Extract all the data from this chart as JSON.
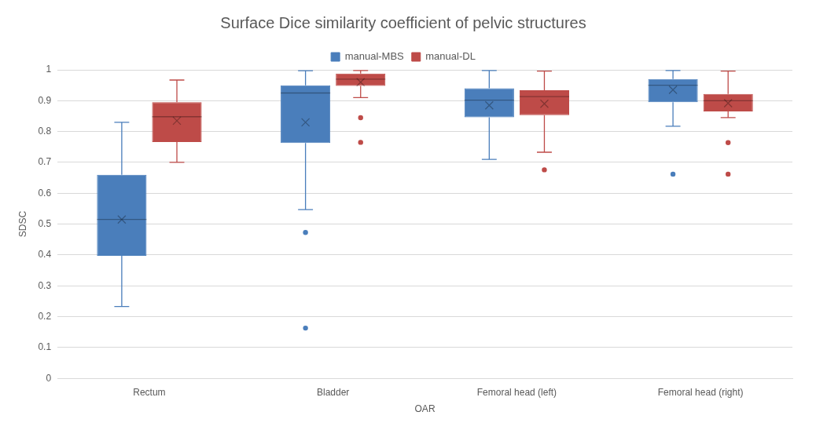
{
  "chart_data": {
    "type": "box",
    "title": "Surface Dice similarity coefficient of pelvic structures",
    "xlabel": "OAR",
    "ylabel": "SDSC",
    "categories": [
      "Rectum",
      "Bladder",
      "Femoral head (left)",
      "Femoral head (right)"
    ],
    "ylim": [
      0,
      1
    ],
    "yticks": [
      0,
      0.1,
      0.2,
      0.3,
      0.4,
      0.5,
      0.6,
      0.7,
      0.8,
      0.9,
      1
    ],
    "grid": "y",
    "legend": "top",
    "series": [
      {
        "name": "manual-MBS",
        "color": "#4a7ebb",
        "boxes": [
          {
            "low": 0.233,
            "q1": 0.397,
            "median": 0.515,
            "q3": 0.66,
            "high": 0.83,
            "mean": 0.515
          },
          {
            "low": 0.547,
            "q1": 0.763,
            "median": 0.925,
            "q3": 0.95,
            "high": 0.997,
            "mean": 0.83,
            "outliers": [
              0.473,
              0.163
            ]
          },
          {
            "low": 0.71,
            "q1": 0.846,
            "median": 0.902,
            "q3": 0.94,
            "high": 0.998,
            "mean": 0.885
          },
          {
            "low": 0.817,
            "q1": 0.895,
            "median": 0.95,
            "q3": 0.97,
            "high": 0.998,
            "mean": 0.935,
            "outliers": [
              0.662
            ]
          }
        ]
      },
      {
        "name": "manual-DL",
        "color": "#be4b48",
        "boxes": [
          {
            "low": 0.7,
            "q1": 0.766,
            "median": 0.848,
            "q3": 0.895,
            "high": 0.967,
            "mean": 0.835
          },
          {
            "low": 0.91,
            "q1": 0.948,
            "median": 0.97,
            "q3": 0.988,
            "high": 0.998,
            "mean": 0.96,
            "outliers": [
              0.845,
              0.765
            ]
          },
          {
            "low": 0.733,
            "q1": 0.853,
            "median": 0.913,
            "q3": 0.934,
            "high": 0.996,
            "mean": 0.89,
            "outliers": [
              0.676
            ]
          },
          {
            "low": 0.845,
            "q1": 0.865,
            "median": 0.9,
            "q3": 0.922,
            "high": 0.996,
            "mean": 0.892,
            "outliers": [
              0.764,
              0.662
            ]
          }
        ]
      }
    ]
  }
}
